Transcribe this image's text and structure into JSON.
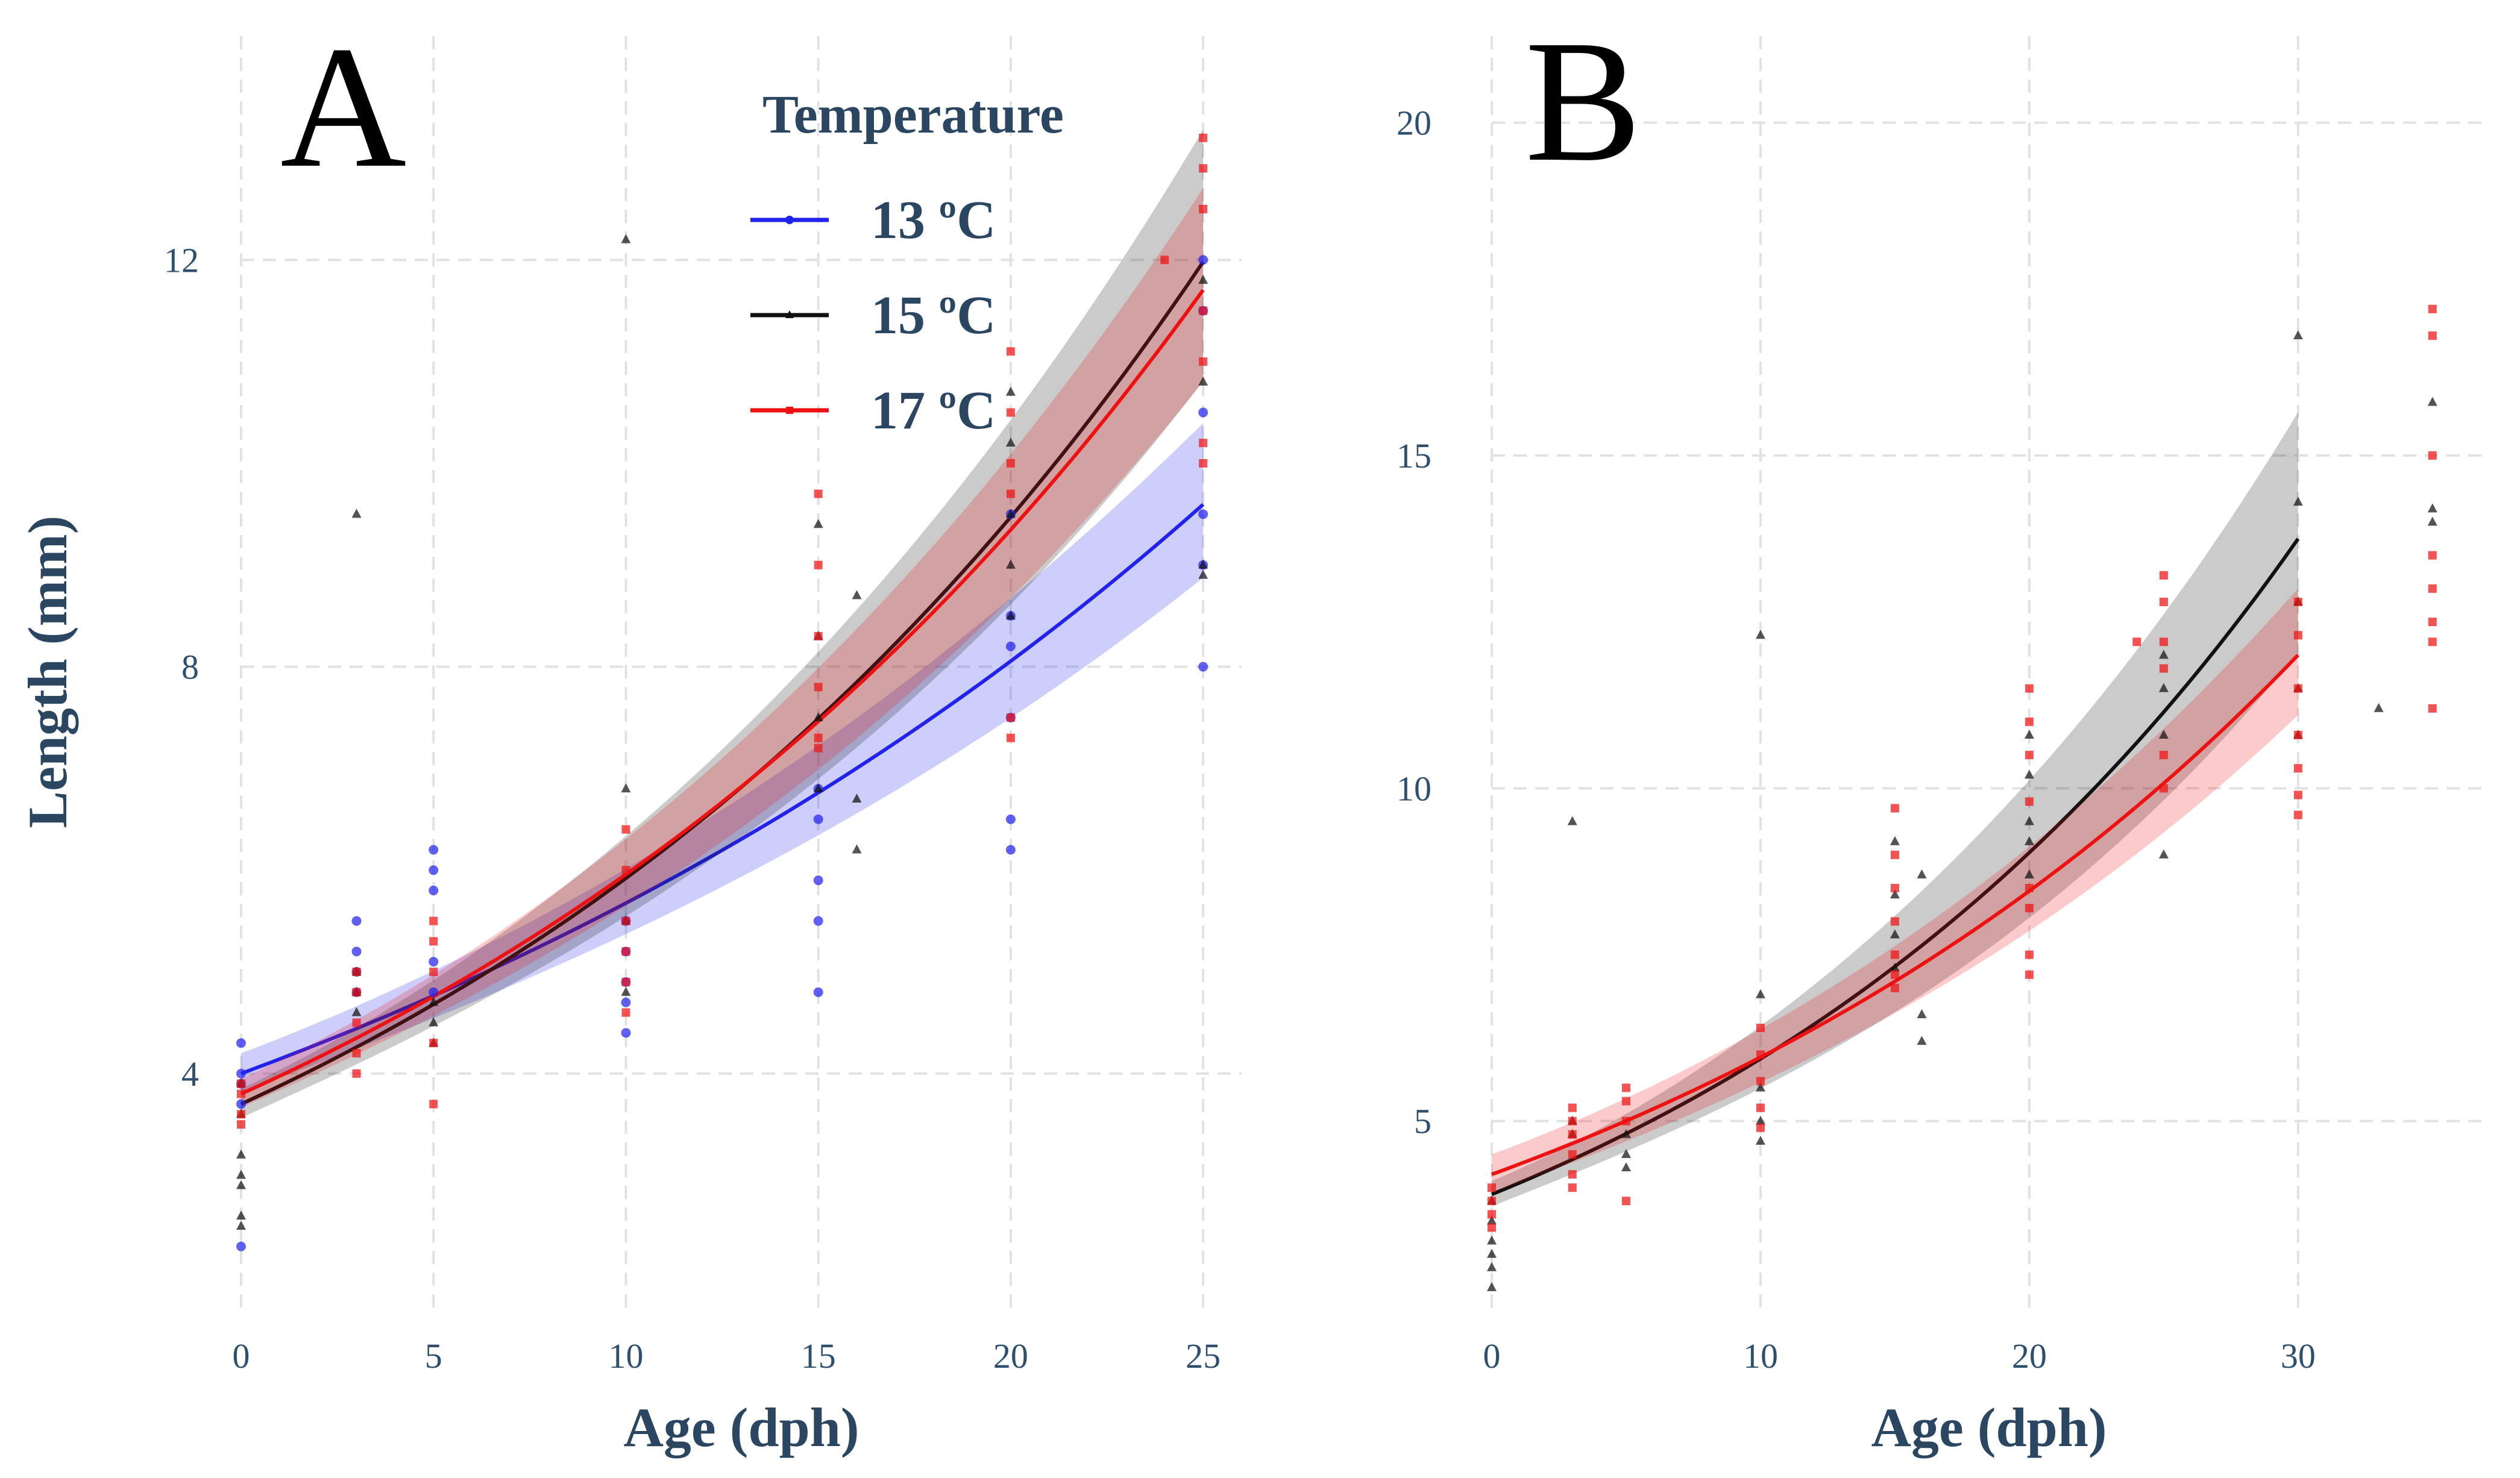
{
  "chart_data": [
    {
      "type": "scatter",
      "panel_label": "A",
      "xlabel": "Age (dph)",
      "ylabel": "Length (mm)",
      "xlim": [
        0,
        26
      ],
      "ylim": [
        1.7,
        14.2
      ],
      "xticks": [
        0,
        5,
        10,
        15,
        20,
        25
      ],
      "yticks": [
        4,
        8,
        12
      ],
      "grid": true,
      "legend": {
        "title": "Temperature",
        "position": "top-right",
        "entries": [
          "13 ºC",
          "15 ºC",
          "17 ºC"
        ]
      },
      "series": [
        {
          "name": "13 ºC",
          "color": "#2222ee",
          "fit": {
            "start": 4.0,
            "rate": 0.035,
            "band": [
              0.2,
              0.8
            ]
          },
          "points": [
            [
              0,
              4.3
            ],
            [
              0,
              4.0
            ],
            [
              0,
              3.9
            ],
            [
              0,
              3.7
            ],
            [
              0,
              2.3
            ],
            [
              3,
              5.5
            ],
            [
              3,
              5.2
            ],
            [
              3,
              5.0
            ],
            [
              3,
              4.8
            ],
            [
              5,
              6.2
            ],
            [
              5,
              6.0
            ],
            [
              5,
              5.8
            ],
            [
              5,
              5.1
            ],
            [
              5,
              4.8
            ],
            [
              10,
              5.5
            ],
            [
              10,
              5.2
            ],
            [
              10,
              4.9
            ],
            [
              10,
              4.7
            ],
            [
              10,
              4.4
            ],
            [
              15,
              6.8
            ],
            [
              15,
              6.5
            ],
            [
              15,
              5.9
            ],
            [
              15,
              5.5
            ],
            [
              15,
              4.8
            ],
            [
              20,
              9.5
            ],
            [
              20,
              8.5
            ],
            [
              20,
              8.2
            ],
            [
              20,
              7.5
            ],
            [
              20,
              6.5
            ],
            [
              20,
              6.2
            ],
            [
              25,
              12.0
            ],
            [
              25,
              11.5
            ],
            [
              25,
              10.5
            ],
            [
              25,
              9.5
            ],
            [
              25,
              9.0
            ],
            [
              25,
              8.0
            ]
          ]
        },
        {
          "name": "15 ºC",
          "color": "#111111",
          "fit": {
            "start": 3.7,
            "rate": 0.047,
            "band": [
              0.15,
              1.3
            ]
          },
          "points": [
            [
              0,
              3.9
            ],
            [
              0,
              3.6
            ],
            [
              0,
              3.2
            ],
            [
              0,
              3.0
            ],
            [
              0,
              2.9
            ],
            [
              0,
              2.6
            ],
            [
              0,
              2.5
            ],
            [
              3,
              9.5
            ],
            [
              3,
              5.0
            ],
            [
              3,
              4.8
            ],
            [
              3,
              4.6
            ],
            [
              5,
              4.7
            ],
            [
              5,
              4.5
            ],
            [
              5,
              4.3
            ],
            [
              10,
              12.2
            ],
            [
              10,
              6.8
            ],
            [
              10,
              5.5
            ],
            [
              10,
              4.8
            ],
            [
              15,
              9.4
            ],
            [
              15,
              8.3
            ],
            [
              15,
              7.5
            ],
            [
              15,
              6.8
            ],
            [
              16,
              8.7
            ],
            [
              16,
              6.7
            ],
            [
              16,
              6.2
            ],
            [
              20,
              10.7
            ],
            [
              20,
              10.2
            ],
            [
              20,
              9.5
            ],
            [
              20,
              9.0
            ],
            [
              20,
              8.5
            ],
            [
              25,
              11.8
            ],
            [
              25,
              10.8
            ],
            [
              25,
              9.0
            ],
            [
              25,
              8.9
            ]
          ]
        },
        {
          "name": "17 ºC",
          "color": "#ee1111",
          "fit": {
            "start": 3.8,
            "rate": 0.045,
            "band": [
              0.15,
              1.0
            ]
          },
          "points": [
            [
              0,
              3.9
            ],
            [
              0,
              3.8
            ],
            [
              0,
              3.6
            ],
            [
              0,
              3.5
            ],
            [
              3,
              5.0
            ],
            [
              3,
              4.8
            ],
            [
              3,
              4.5
            ],
            [
              3,
              4.2
            ],
            [
              3,
              4.0
            ],
            [
              5,
              5.5
            ],
            [
              5,
              5.3
            ],
            [
              5,
              5.0
            ],
            [
              5,
              4.3
            ],
            [
              5,
              3.7
            ],
            [
              10,
              6.4
            ],
            [
              10,
              6.0
            ],
            [
              10,
              5.5
            ],
            [
              10,
              5.2
            ],
            [
              10,
              4.9
            ],
            [
              10,
              4.6
            ],
            [
              15,
              9.7
            ],
            [
              15,
              9.0
            ],
            [
              15,
              8.3
            ],
            [
              15,
              7.8
            ],
            [
              15,
              7.3
            ],
            [
              15,
              7.2
            ],
            [
              20,
              11.1
            ],
            [
              20,
              10.5
            ],
            [
              20,
              10.0
            ],
            [
              20,
              9.7
            ],
            [
              20,
              7.5
            ],
            [
              20,
              7.3
            ],
            [
              24,
              12.0
            ],
            [
              25,
              13.2
            ],
            [
              25,
              12.9
            ],
            [
              25,
              12.5
            ],
            [
              25,
              11.5
            ],
            [
              25,
              11.0
            ],
            [
              25,
              10.2
            ],
            [
              25,
              10.0
            ]
          ]
        }
      ]
    },
    {
      "type": "scatter",
      "panel_label": "B",
      "xlabel": "Age (dph)",
      "ylabel": "",
      "xlim": [
        0,
        37
      ],
      "ylim": [
        2.2,
        21.3
      ],
      "xticks": [
        0,
        10,
        20,
        30
      ],
      "yticks": [
        5,
        10,
        15,
        20
      ],
      "grid": true,
      "series": [
        {
          "name": "15 ºC",
          "color": "#111111",
          "fit": {
            "start": 3.9,
            "rate": 0.042,
            "band": [
              0.2,
              1.9
            ]
          },
          "points": [
            [
              0,
              3.8
            ],
            [
              0,
              3.5
            ],
            [
              0,
              3.2
            ],
            [
              0,
              3.0
            ],
            [
              0,
              2.8
            ],
            [
              0,
              2.5
            ],
            [
              3,
              9.5
            ],
            [
              3,
              5.0
            ],
            [
              3,
              4.8
            ],
            [
              5,
              4.8
            ],
            [
              5,
              4.5
            ],
            [
              5,
              4.3
            ],
            [
              10,
              12.3
            ],
            [
              10,
              6.9
            ],
            [
              10,
              5.5
            ],
            [
              10,
              5.0
            ],
            [
              10,
              4.7
            ],
            [
              15,
              9.2
            ],
            [
              15,
              8.4
            ],
            [
              15,
              7.8
            ],
            [
              15,
              7.3
            ],
            [
              16,
              8.7
            ],
            [
              16,
              6.6
            ],
            [
              16,
              6.2
            ],
            [
              20,
              10.8
            ],
            [
              20,
              10.2
            ],
            [
              20,
              9.5
            ],
            [
              20,
              9.2
            ],
            [
              20,
              8.7
            ],
            [
              25,
              12.0
            ],
            [
              25,
              11.5
            ],
            [
              25,
              10.8
            ],
            [
              25,
              9.0
            ],
            [
              30,
              16.8
            ],
            [
              30,
              14.3
            ],
            [
              30,
              12.8
            ],
            [
              30,
              11.5
            ],
            [
              30,
              10.8
            ],
            [
              33,
              11.2
            ],
            [
              35,
              15.8
            ],
            [
              35,
              14.2
            ],
            [
              35,
              14.0
            ]
          ]
        },
        {
          "name": "17 ºC",
          "color": "#ee1111",
          "fit": {
            "start": 4.2,
            "rate": 0.035,
            "band": [
              0.3,
              1.0
            ]
          },
          "points": [
            [
              0,
              4.0
            ],
            [
              0,
              3.8
            ],
            [
              0,
              3.6
            ],
            [
              0,
              3.4
            ],
            [
              3,
              5.2
            ],
            [
              3,
              5.0
            ],
            [
              3,
              4.8
            ],
            [
              3,
              4.5
            ],
            [
              3,
              4.2
            ],
            [
              3,
              4.0
            ],
            [
              5,
              5.5
            ],
            [
              5,
              5.3
            ],
            [
              5,
              5.0
            ],
            [
              5,
              3.8
            ],
            [
              10,
              6.4
            ],
            [
              10,
              6.0
            ],
            [
              10,
              5.6
            ],
            [
              10,
              5.2
            ],
            [
              10,
              4.9
            ],
            [
              15,
              9.7
            ],
            [
              15,
              9.0
            ],
            [
              15,
              8.5
            ],
            [
              15,
              8.0
            ],
            [
              15,
              7.5
            ],
            [
              15,
              7.2
            ],
            [
              15,
              7.0
            ],
            [
              20,
              11.5
            ],
            [
              20,
              11.0
            ],
            [
              20,
              10.5
            ],
            [
              20,
              9.8
            ],
            [
              20,
              8.5
            ],
            [
              20,
              8.2
            ],
            [
              20,
              7.5
            ],
            [
              20,
              7.2
            ],
            [
              24,
              12.2
            ],
            [
              25,
              13.2
            ],
            [
              25,
              12.8
            ],
            [
              25,
              12.2
            ],
            [
              25,
              11.8
            ],
            [
              25,
              10.5
            ],
            [
              25,
              10.0
            ],
            [
              30,
              12.8
            ],
            [
              30,
              12.3
            ],
            [
              30,
              11.5
            ],
            [
              30,
              10.8
            ],
            [
              30,
              10.3
            ],
            [
              30,
              9.9
            ],
            [
              30,
              9.6
            ],
            [
              35,
              17.2
            ],
            [
              35,
              16.8
            ],
            [
              35,
              15.0
            ],
            [
              35,
              13.5
            ],
            [
              35,
              13.0
            ],
            [
              35,
              12.5
            ],
            [
              35,
              12.2
            ],
            [
              35,
              11.2
            ]
          ]
        }
      ]
    }
  ]
}
